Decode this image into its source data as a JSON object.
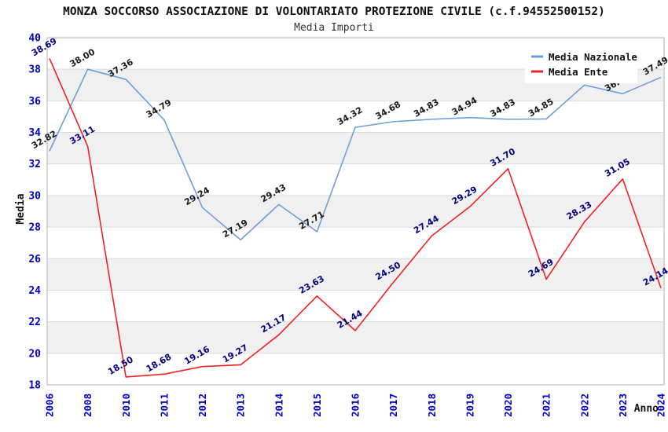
{
  "title": "MONZA SOCCORSO ASSOCIAZIONE DI VOLONTARIATO PROTEZIONE CIVILE (c.f.94552500152)",
  "subtitle": "Media Importi",
  "axes": {
    "x_label": "Anno",
    "y_label": "Media"
  },
  "legend": {
    "position": "top-right",
    "items": [
      {
        "label": "Media Nazionale",
        "color": "#6d9fd6"
      },
      {
        "label": "Media Ente",
        "color": "#ee2222"
      }
    ]
  },
  "colors": {
    "background": "#ffffff",
    "band_gray": "#f0f0f0",
    "gridline": "#dcdcdc",
    "plot_border": "#b0b0b0",
    "tick_label_blue": "#0000cc",
    "national_line": "#6d9fd6",
    "ente_line": "#ee2222",
    "national_label": "#1a1a1a",
    "ente_label": "#000080"
  },
  "chart_data": {
    "type": "line",
    "title": "MONZA SOCCORSO ASSOCIAZIONE DI VOLONTARIATO PROTEZIONE CIVILE (c.f.94552500152)",
    "subtitle": "Media Importi",
    "xlabel": "Anno",
    "ylabel": "Media",
    "ylim": [
      18,
      40
    ],
    "ytick_step": 2,
    "grid": "horizontal gridlines with alternating gray bands",
    "legend_position": "top-right inset, white box",
    "categories": [
      "2006",
      "2008",
      "2010",
      "2011",
      "2012",
      "2013",
      "2014",
      "2015",
      "2016",
      "2017",
      "2018",
      "2019",
      "2020",
      "2021",
      "2022",
      "2023",
      "2024"
    ],
    "series": [
      {
        "name": "Media Nazionale",
        "color": "#6d9fd6",
        "label_color": "#1a1a1a",
        "values": [
          32.82,
          38.0,
          37.36,
          34.79,
          29.24,
          27.19,
          29.43,
          27.71,
          34.32,
          34.68,
          34.83,
          34.94,
          34.83,
          34.85,
          37.0,
          36.45,
          37.49
        ],
        "labels": [
          "32.82",
          "38.00",
          "37.36",
          "34.79",
          "29.24",
          "27.19",
          "29.43",
          "27.71",
          "34.32",
          "34.68",
          "34.83",
          "34.94",
          "34.83",
          "34.85",
          "",
          "36.45",
          "37.49"
        ],
        "note_2022_2023": "labels hidden/partially hidden behind legend box; values estimated from line position"
      },
      {
        "name": "Media Ente",
        "color": "#ee2222",
        "label_color": "#000080",
        "values": [
          38.69,
          33.11,
          18.5,
          18.68,
          19.16,
          19.27,
          21.17,
          23.63,
          21.44,
          24.5,
          27.44,
          29.29,
          31.7,
          24.69,
          28.33,
          31.05,
          24.14
        ],
        "labels": [
          "38.69",
          "33.11",
          "18.50",
          "18.68",
          "19.16",
          "19.27",
          "21.17",
          "23.63",
          "21.44",
          "24.50",
          "27.44",
          "29.29",
          "31.70",
          "24.69",
          "28.33",
          "31.05",
          "24.14"
        ]
      }
    ]
  }
}
